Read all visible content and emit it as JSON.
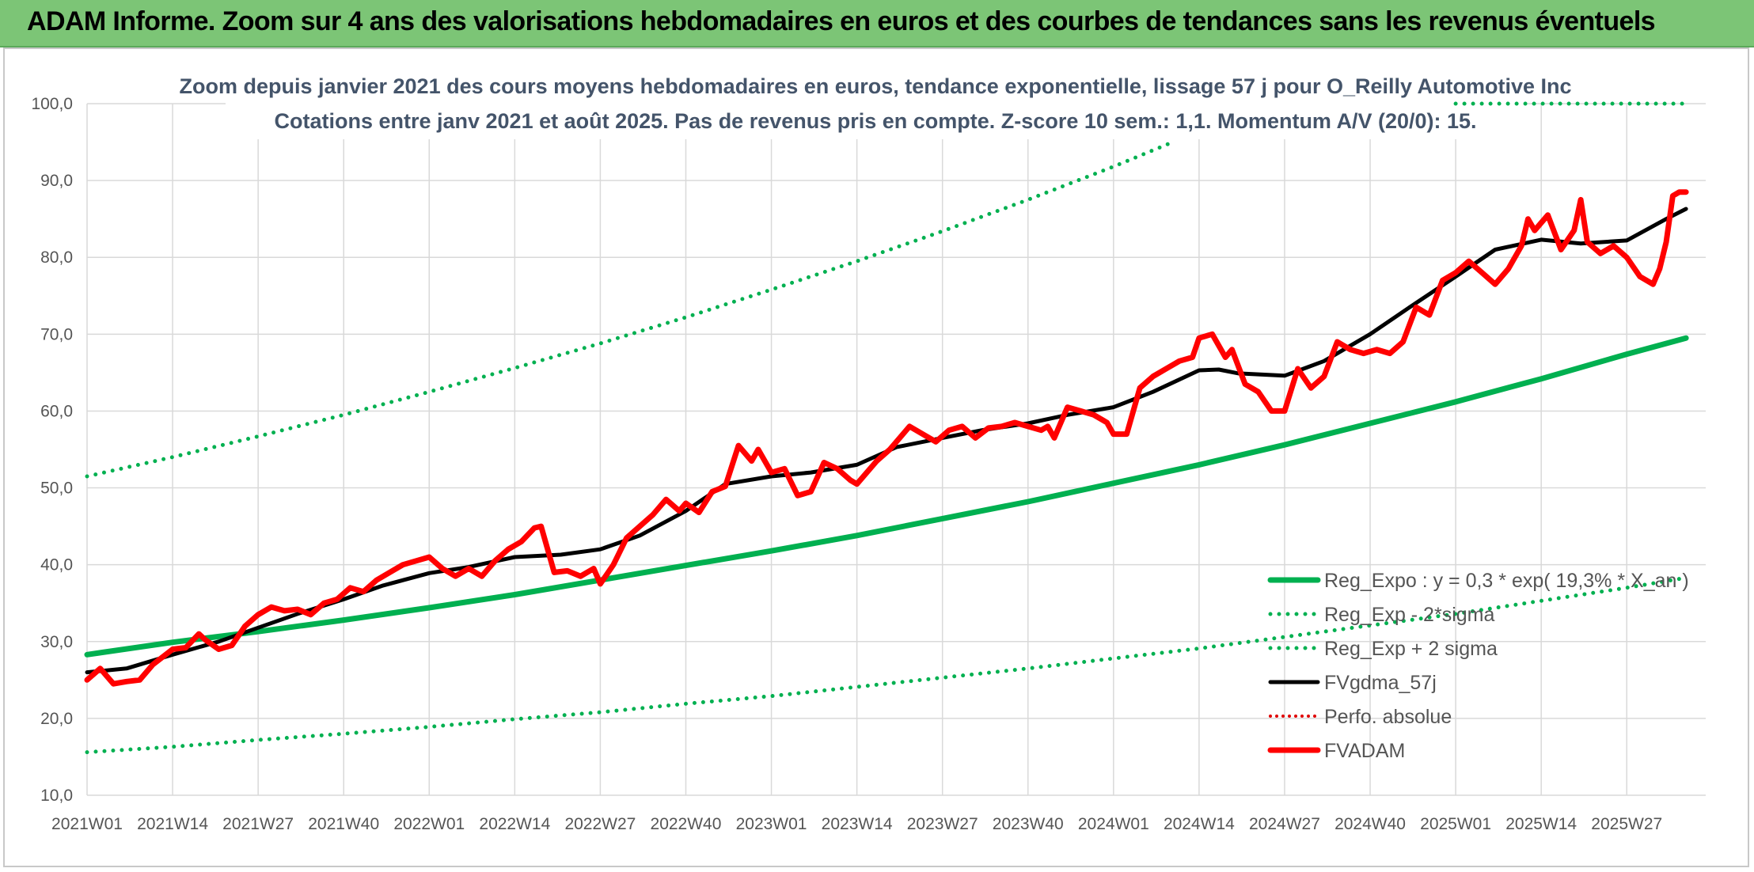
{
  "banner": {
    "title": "ADAM Informe. Zoom sur 4 ans des valorisations hebdomadaires en euros et des courbes de tendances sans les revenus éventuels"
  },
  "colors": {
    "banner": "#7cc576",
    "reg_expo": "#00b050",
    "sigma": "#00b050",
    "fvgdma": "#000000",
    "perfo": "#e00000",
    "fvadam": "#ff0000",
    "grid": "#d9d9d9",
    "title": "#44546a"
  },
  "chart_data": {
    "type": "line",
    "title": "Zoom depuis janvier 2021 des cours moyens hebdomadaires en euros, tendance exponentielle, lissage 57 j pour O_Reilly Automotive Inc",
    "subtitle": "Cotations entre janv 2021 et août 2025. Pas de revenus pris en compte. Z-score 10 sem.: 1,1. Momentum A/V (20/0): 15.",
    "xlabel": "",
    "ylabel": "",
    "ylim": [
      10,
      100
    ],
    "yticks": [
      "10,0",
      "20,0",
      "30,0",
      "40,0",
      "50,0",
      "60,0",
      "70,0",
      "80,0",
      "90,0",
      "100,0"
    ],
    "xticks": [
      "2021W01",
      "2021W14",
      "2021W27",
      "2021W40",
      "2022W01",
      "2022W14",
      "2022W27",
      "2022W40",
      "2023W01",
      "2023W14",
      "2023W27",
      "2023W40",
      "2024W01",
      "2024W14",
      "2024W27",
      "2024W40",
      "2025W01",
      "2025W14",
      "2025W27"
    ],
    "x_unit": "week index from 2021W01 (13 weeks per tick)",
    "grid": true,
    "legend_position": "bottom-right",
    "series": [
      {
        "name": "Reg_Expo : y = 0,3 * exp( 19,3% * X_an )",
        "style": "solid-thick",
        "points": [
          [
            0,
            28.3
          ],
          [
            13,
            29.9
          ],
          [
            26,
            31.3
          ],
          [
            39,
            32.8
          ],
          [
            52,
            34.4
          ],
          [
            65,
            36.1
          ],
          [
            78,
            38.0
          ],
          [
            91,
            39.9
          ],
          [
            104,
            41.8
          ],
          [
            117,
            43.8
          ],
          [
            130,
            46.0
          ],
          [
            143,
            48.2
          ],
          [
            156,
            50.6
          ],
          [
            169,
            53.0
          ],
          [
            182,
            55.6
          ],
          [
            195,
            58.4
          ],
          [
            208,
            61.2
          ],
          [
            221,
            64.2
          ],
          [
            234,
            67.4
          ],
          [
            243,
            69.5
          ]
        ]
      },
      {
        "name": "Reg_Exp - 2*sigma",
        "style": "dotted",
        "points": [
          [
            0,
            15.6
          ],
          [
            13,
            16.3
          ],
          [
            26,
            17.2
          ],
          [
            39,
            18.0
          ],
          [
            52,
            18.9
          ],
          [
            65,
            19.9
          ],
          [
            78,
            20.8
          ],
          [
            91,
            21.9
          ],
          [
            104,
            22.9
          ],
          [
            117,
            24.1
          ],
          [
            130,
            25.3
          ],
          [
            143,
            26.5
          ],
          [
            156,
            27.8
          ],
          [
            169,
            29.1
          ],
          [
            182,
            30.6
          ],
          [
            195,
            32.1
          ],
          [
            208,
            33.6
          ],
          [
            221,
            35.3
          ],
          [
            234,
            37.0
          ],
          [
            243,
            38.3
          ]
        ]
      },
      {
        "name": "Reg_Exp + 2 sigma",
        "style": "dotted",
        "points": [
          [
            0,
            51.5
          ],
          [
            13,
            54.0
          ],
          [
            26,
            56.7
          ],
          [
            39,
            59.5
          ],
          [
            52,
            62.5
          ],
          [
            65,
            65.6
          ],
          [
            78,
            68.8
          ],
          [
            91,
            72.2
          ],
          [
            104,
            75.8
          ],
          [
            117,
            79.5
          ],
          [
            130,
            83.4
          ],
          [
            143,
            87.5
          ],
          [
            156,
            91.8
          ],
          [
            165,
            95.0
          ]
        ],
        "points_top": [
          [
            208,
            100
          ],
          [
            243,
            100
          ]
        ]
      },
      {
        "name": "FVgdma_57j",
        "style": "solid",
        "points": [
          [
            0,
            26.0
          ],
          [
            6,
            26.5
          ],
          [
            13,
            28.3
          ],
          [
            20,
            30.0
          ],
          [
            26,
            31.8
          ],
          [
            32,
            33.6
          ],
          [
            39,
            35.5
          ],
          [
            45,
            37.3
          ],
          [
            52,
            38.9
          ],
          [
            58,
            39.7
          ],
          [
            65,
            41.0
          ],
          [
            72,
            41.3
          ],
          [
            78,
            42.0
          ],
          [
            84,
            43.8
          ],
          [
            91,
            47.0
          ],
          [
            97,
            50.5
          ],
          [
            104,
            51.5
          ],
          [
            110,
            52.0
          ],
          [
            117,
            53.0
          ],
          [
            123,
            55.3
          ],
          [
            130,
            56.5
          ],
          [
            136,
            57.5
          ],
          [
            143,
            58.4
          ],
          [
            149,
            59.5
          ],
          [
            156,
            60.5
          ],
          [
            162,
            62.5
          ],
          [
            169,
            65.3
          ],
          [
            172,
            65.4
          ],
          [
            175,
            64.9
          ],
          [
            182,
            64.6
          ],
          [
            188,
            66.5
          ],
          [
            195,
            70.0
          ],
          [
            201,
            73.5
          ],
          [
            208,
            77.5
          ],
          [
            214,
            81.0
          ],
          [
            221,
            82.3
          ],
          [
            227,
            81.8
          ],
          [
            234,
            82.2
          ],
          [
            240,
            85.0
          ],
          [
            243,
            86.3
          ]
        ]
      },
      {
        "name": "Perfo. absolue",
        "style": "dotted-red",
        "points": []
      },
      {
        "name": "FVADAM",
        "style": "solid-thick",
        "points": [
          [
            0,
            25.0
          ],
          [
            2,
            26.5
          ],
          [
            4,
            24.5
          ],
          [
            6,
            24.8
          ],
          [
            8,
            25.0
          ],
          [
            10,
            27.0
          ],
          [
            13,
            29.0
          ],
          [
            15,
            29.2
          ],
          [
            17,
            31.0
          ],
          [
            18,
            30.2
          ],
          [
            20,
            29.0
          ],
          [
            22,
            29.5
          ],
          [
            24,
            32.0
          ],
          [
            26,
            33.5
          ],
          [
            28,
            34.5
          ],
          [
            30,
            34.0
          ],
          [
            32,
            34.2
          ],
          [
            34,
            33.5
          ],
          [
            36,
            35.0
          ],
          [
            38,
            35.5
          ],
          [
            40,
            37.0
          ],
          [
            42,
            36.5
          ],
          [
            44,
            38.0
          ],
          [
            46,
            39.0
          ],
          [
            48,
            40.0
          ],
          [
            50,
            40.5
          ],
          [
            52,
            41.0
          ],
          [
            54,
            39.5
          ],
          [
            56,
            38.5
          ],
          [
            58,
            39.5
          ],
          [
            60,
            38.5
          ],
          [
            62,
            40.5
          ],
          [
            64,
            42.0
          ],
          [
            66,
            43.0
          ],
          [
            68,
            44.8
          ],
          [
            69,
            45.0
          ],
          [
            71,
            39.0
          ],
          [
            73,
            39.2
          ],
          [
            75,
            38.5
          ],
          [
            77,
            39.5
          ],
          [
            78,
            37.5
          ],
          [
            80,
            40.0
          ],
          [
            82,
            43.5
          ],
          [
            84,
            45.0
          ],
          [
            86,
            46.5
          ],
          [
            88,
            48.5
          ],
          [
            90,
            47.0
          ],
          [
            91,
            48.0
          ],
          [
            93,
            46.8
          ],
          [
            95,
            49.5
          ],
          [
            97,
            50.2
          ],
          [
            99,
            55.5
          ],
          [
            101,
            53.5
          ],
          [
            102,
            55.0
          ],
          [
            104,
            52.0
          ],
          [
            106,
            52.5
          ],
          [
            108,
            49.0
          ],
          [
            110,
            49.5
          ],
          [
            112,
            53.3
          ],
          [
            114,
            52.5
          ],
          [
            116,
            51.0
          ],
          [
            117,
            50.5
          ],
          [
            120,
            53.5
          ],
          [
            122,
            55.0
          ],
          [
            125,
            58.0
          ],
          [
            127,
            57.0
          ],
          [
            129,
            56.0
          ],
          [
            131,
            57.5
          ],
          [
            133,
            58.0
          ],
          [
            135,
            56.5
          ],
          [
            137,
            57.8
          ],
          [
            139,
            58.0
          ],
          [
            141,
            58.5
          ],
          [
            143,
            58.0
          ],
          [
            145,
            57.5
          ],
          [
            146,
            58.0
          ],
          [
            147,
            56.5
          ],
          [
            149,
            60.5
          ],
          [
            151,
            60.0
          ],
          [
            153,
            59.5
          ],
          [
            155,
            58.5
          ],
          [
            156,
            57.0
          ],
          [
            158,
            57.0
          ],
          [
            160,
            63.0
          ],
          [
            162,
            64.5
          ],
          [
            164,
            65.5
          ],
          [
            166,
            66.5
          ],
          [
            168,
            67.0
          ],
          [
            169,
            69.5
          ],
          [
            171,
            70.0
          ],
          [
            173,
            67.0
          ],
          [
            174,
            68.0
          ],
          [
            176,
            63.5
          ],
          [
            178,
            62.5
          ],
          [
            180,
            60.0
          ],
          [
            182,
            60.0
          ],
          [
            184,
            65.5
          ],
          [
            186,
            63.0
          ],
          [
            188,
            64.5
          ],
          [
            190,
            69.0
          ],
          [
            192,
            68.0
          ],
          [
            194,
            67.5
          ],
          [
            196,
            68.0
          ],
          [
            198,
            67.5
          ],
          [
            200,
            69.0
          ],
          [
            202,
            73.5
          ],
          [
            204,
            72.5
          ],
          [
            206,
            77.0
          ],
          [
            208,
            78.0
          ],
          [
            210,
            79.5
          ],
          [
            212,
            78.0
          ],
          [
            214,
            76.5
          ],
          [
            216,
            78.5
          ],
          [
            218,
            81.5
          ],
          [
            219,
            85.0
          ],
          [
            220,
            83.5
          ],
          [
            222,
            85.5
          ],
          [
            224,
            81.0
          ],
          [
            226,
            83.5
          ],
          [
            227,
            87.5
          ],
          [
            228,
            82.0
          ],
          [
            230,
            80.5
          ],
          [
            232,
            81.5
          ],
          [
            234,
            80.0
          ],
          [
            236,
            77.5
          ],
          [
            238,
            76.5
          ],
          [
            239,
            78.5
          ],
          [
            240,
            82.0
          ],
          [
            241,
            88.0
          ],
          [
            242,
            88.5
          ],
          [
            243,
            88.5
          ]
        ]
      }
    ]
  }
}
